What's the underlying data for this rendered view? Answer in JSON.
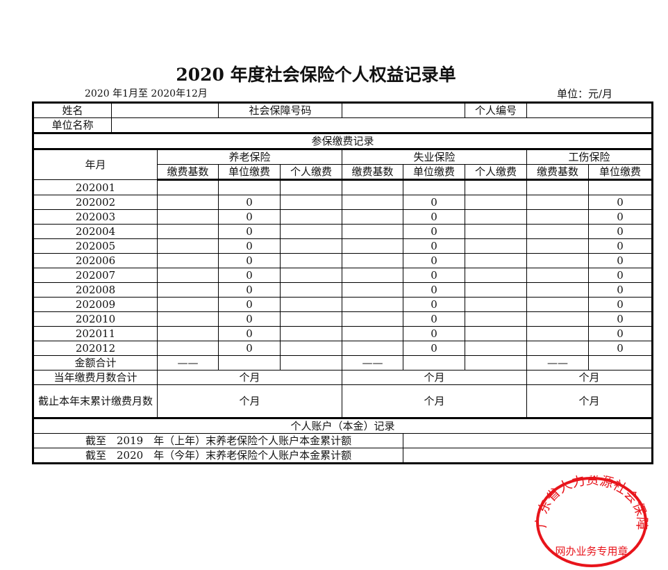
{
  "title": "2020 年度社会保险个人权益记录单",
  "period": "2020 年1月至 2020年12月",
  "unit": "单位：元/月",
  "info": {
    "name_label": "姓名",
    "name_value": "",
    "ssn_label": "社会保障号码",
    "ssn_value": "",
    "id_label": "个人编号",
    "id_value": "",
    "employer_label": "单位名称",
    "employer_value": ""
  },
  "section_payment": "参保缴费记录",
  "headers": {
    "year_month": "年月",
    "pension": "养老保险",
    "unemployment": "失业保险",
    "injury": "工伤保险",
    "sub": [
      "缴费基数",
      "单位缴费",
      "个人缴费",
      "缴费基数",
      "单位缴费",
      "个人缴费",
      "缴费基数",
      "单位缴费"
    ]
  },
  "rows": [
    {
      "ym": "202001",
      "v": [
        "",
        "",
        "",
        "",
        "",
        "",
        "",
        ""
      ]
    },
    {
      "ym": "202002",
      "v": [
        "",
        "0",
        "",
        "",
        "0",
        "",
        "",
        "0"
      ]
    },
    {
      "ym": "202003",
      "v": [
        "",
        "0",
        "",
        "",
        "0",
        "",
        "",
        "0"
      ]
    },
    {
      "ym": "202004",
      "v": [
        "",
        "0",
        "",
        "",
        "0",
        "",
        "",
        "0"
      ]
    },
    {
      "ym": "202005",
      "v": [
        "",
        "0",
        "",
        "",
        "0",
        "",
        "",
        "0"
      ]
    },
    {
      "ym": "202006",
      "v": [
        "",
        "0",
        "",
        "",
        "0",
        "",
        "",
        "0"
      ]
    },
    {
      "ym": "202007",
      "v": [
        "",
        "0",
        "",
        "",
        "0",
        "",
        "",
        "0"
      ]
    },
    {
      "ym": "202008",
      "v": [
        "",
        "0",
        "",
        "",
        "0",
        "",
        "",
        "0"
      ]
    },
    {
      "ym": "202009",
      "v": [
        "",
        "0",
        "",
        "",
        "0",
        "",
        "",
        "0"
      ]
    },
    {
      "ym": "202010",
      "v": [
        "",
        "0",
        "",
        "",
        "0",
        "",
        "",
        "0"
      ]
    },
    {
      "ym": "202011",
      "v": [
        "",
        "0",
        "",
        "",
        "0",
        "",
        "",
        "0"
      ]
    },
    {
      "ym": "202012",
      "v": [
        "",
        "0",
        "",
        "",
        "0",
        "",
        "",
        "0"
      ]
    }
  ],
  "total": {
    "label": "金额合计",
    "v": [
      "——",
      "",
      "",
      "——",
      "",
      "",
      "——",
      ""
    ]
  },
  "months_year": {
    "label": "当年缴费月数合计",
    "unit": "个月"
  },
  "months_cumulative": {
    "label": "截止本年末累计缴费月数",
    "unit": "个月"
  },
  "section_account": "个人账户（本金）记录",
  "account": [
    {
      "label": "截至　2019　年（上年）末养老保险个人账户本金累计额",
      "value": ""
    },
    {
      "label": "截至　2020　年（今年）末养老保险个人账户本金累计额",
      "value": ""
    }
  ],
  "stamp": {
    "org": "广东省人力资源社会保障厅",
    "purpose": "网办业务专用章",
    "color": "#e8141b"
  }
}
